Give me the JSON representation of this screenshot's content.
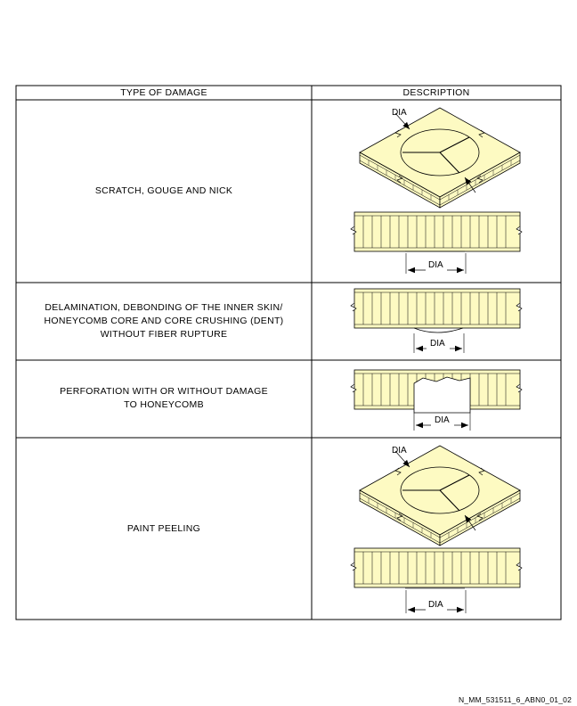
{
  "table": {
    "headers": {
      "type": "TYPE OF DAMAGE",
      "description": "DESCRIPTION"
    },
    "rows": [
      {
        "damage_lines": [
          "SCRATCH, GOUGE AND NICK"
        ]
      },
      {
        "damage_lines": [
          "DELAMINATION, DEBONDING OF THE INNER SKIN/",
          "HONEYCOMB CORE AND CORE CRUSHING (DENT)",
          "WITHOUT FIBER RUPTURE"
        ]
      },
      {
        "damage_lines": [
          "PERFORATION WITH OR WITHOUT DAMAGE",
          "TO HONEYCOMB"
        ]
      },
      {
        "damage_lines": [
          "PAINT PEELING"
        ]
      }
    ]
  },
  "dimension_label": "DIA",
  "footer": {
    "code": "N_MM_531511_6_ABN0_01_02"
  },
  "colors": {
    "panel_fill": "#fdfac2",
    "line": "#000000"
  }
}
